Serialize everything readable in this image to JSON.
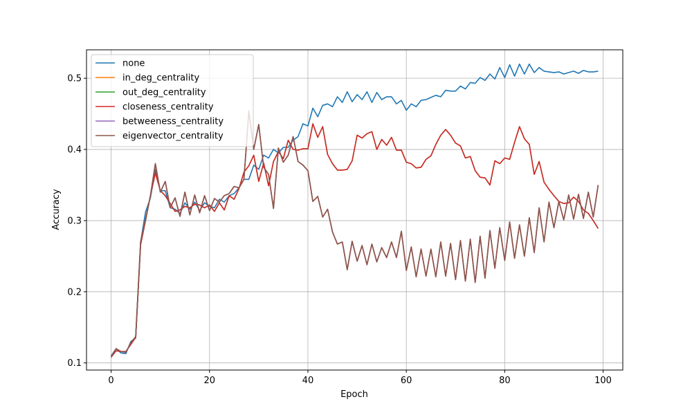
{
  "chart_data": {
    "type": "line",
    "xlabel": "Epoch",
    "ylabel": "Accuracy",
    "xlim": [
      -5,
      104
    ],
    "ylim": [
      0.09,
      0.54
    ],
    "xticks": [
      0,
      20,
      40,
      60,
      80,
      100
    ],
    "yticks": [
      0.1,
      0.2,
      0.3,
      0.4,
      0.5
    ],
    "grid": true,
    "legend_position": "top-left",
    "series": [
      {
        "name": "none",
        "color": "#1f77b4",
        "values": [
          0.11,
          0.12,
          0.114,
          0.113,
          0.13,
          0.135,
          0.27,
          0.312,
          0.332,
          0.372,
          0.342,
          0.342,
          0.318,
          0.316,
          0.31,
          0.325,
          0.316,
          0.326,
          0.314,
          0.325,
          0.32,
          0.318,
          0.33,
          0.326,
          0.335,
          0.338,
          0.346,
          0.358,
          0.358,
          0.378,
          0.372,
          0.392,
          0.388,
          0.4,
          0.395,
          0.403,
          0.403,
          0.413,
          0.418,
          0.436,
          0.433,
          0.458,
          0.446,
          0.462,
          0.464,
          0.46,
          0.474,
          0.466,
          0.481,
          0.467,
          0.477,
          0.47,
          0.481,
          0.466,
          0.48,
          0.47,
          0.474,
          0.474,
          0.464,
          0.469,
          0.455,
          0.464,
          0.46,
          0.469,
          0.47,
          0.473,
          0.476,
          0.474,
          0.483,
          0.482,
          0.482,
          0.489,
          0.485,
          0.494,
          0.493,
          0.501,
          0.497,
          0.506,
          0.499,
          0.515,
          0.501,
          0.519,
          0.503,
          0.52,
          0.506,
          0.52,
          0.508,
          0.515,
          0.51,
          0.509,
          0.508,
          0.509,
          0.506,
          0.508,
          0.51,
          0.507,
          0.511,
          0.509,
          0.509,
          0.51
        ]
      },
      {
        "name": "in_deg_centrality",
        "color": "#ff7f0e",
        "values": [
          0.108,
          0.12,
          0.116,
          0.115,
          0.128,
          0.137,
          0.27,
          0.302,
          0.335,
          0.38,
          0.34,
          0.355,
          0.318,
          0.332,
          0.306,
          0.34,
          0.308,
          0.336,
          0.311,
          0.335,
          0.314,
          0.331,
          0.326,
          0.335,
          0.338,
          0.348,
          0.346,
          0.358,
          0.454,
          0.4,
          0.435,
          0.375,
          0.365,
          0.317,
          0.402,
          0.382,
          0.392,
          0.418,
          0.383,
          0.378,
          0.37,
          0.327,
          0.334,
          0.305,
          0.316,
          0.284,
          0.267,
          0.27,
          0.231,
          0.271,
          0.243,
          0.265,
          0.238,
          0.267,
          0.242,
          0.262,
          0.248,
          0.27,
          0.248,
          0.285,
          0.23,
          0.263,
          0.221,
          0.26,
          0.222,
          0.26,
          0.221,
          0.27,
          0.222,
          0.268,
          0.217,
          0.272,
          0.215,
          0.274,
          0.213,
          0.278,
          0.219,
          0.286,
          0.233,
          0.29,
          0.244,
          0.298,
          0.247,
          0.294,
          0.25,
          0.304,
          0.255,
          0.318,
          0.27,
          0.326,
          0.29,
          0.327,
          0.301,
          0.336,
          0.302,
          0.337,
          0.303,
          0.34,
          0.305,
          0.35
        ]
      },
      {
        "name": "out_deg_centrality",
        "color": "#2ca02c",
        "values": [
          0.108,
          0.117,
          0.116,
          0.116,
          0.126,
          0.136,
          0.266,
          0.3,
          0.335,
          0.367,
          0.342,
          0.335,
          0.324,
          0.313,
          0.315,
          0.32,
          0.318,
          0.323,
          0.322,
          0.318,
          0.322,
          0.313,
          0.325,
          0.315,
          0.335,
          0.33,
          0.345,
          0.368,
          0.377,
          0.392,
          0.355,
          0.381,
          0.349,
          0.383,
          0.397,
          0.387,
          0.413,
          0.4,
          0.399,
          0.401,
          0.401,
          0.436,
          0.417,
          0.432,
          0.393,
          0.38,
          0.371,
          0.371,
          0.372,
          0.384,
          0.42,
          0.416,
          0.422,
          0.425,
          0.4,
          0.414,
          0.406,
          0.417,
          0.399,
          0.399,
          0.382,
          0.38,
          0.374,
          0.375,
          0.386,
          0.391,
          0.407,
          0.42,
          0.428,
          0.42,
          0.409,
          0.405,
          0.388,
          0.39,
          0.37,
          0.361,
          0.36,
          0.35,
          0.384,
          0.38,
          0.388,
          0.386,
          0.41,
          0.432,
          0.415,
          0.407,
          0.365,
          0.383,
          0.354,
          0.344,
          0.335,
          0.327,
          0.324,
          0.325,
          0.333,
          0.327,
          0.315,
          0.31,
          0.3,
          0.289
        ]
      },
      {
        "name": "closeness_centrality",
        "color": "#d62728",
        "values": [
          0.108,
          0.117,
          0.116,
          0.116,
          0.126,
          0.136,
          0.266,
          0.3,
          0.335,
          0.367,
          0.342,
          0.335,
          0.324,
          0.313,
          0.315,
          0.32,
          0.318,
          0.323,
          0.322,
          0.318,
          0.322,
          0.313,
          0.325,
          0.315,
          0.335,
          0.33,
          0.345,
          0.368,
          0.377,
          0.392,
          0.355,
          0.381,
          0.349,
          0.383,
          0.397,
          0.387,
          0.413,
          0.4,
          0.399,
          0.401,
          0.401,
          0.436,
          0.417,
          0.432,
          0.393,
          0.38,
          0.371,
          0.371,
          0.372,
          0.384,
          0.42,
          0.416,
          0.422,
          0.425,
          0.4,
          0.414,
          0.406,
          0.417,
          0.399,
          0.399,
          0.382,
          0.38,
          0.374,
          0.375,
          0.386,
          0.391,
          0.407,
          0.42,
          0.428,
          0.42,
          0.409,
          0.405,
          0.388,
          0.39,
          0.37,
          0.361,
          0.36,
          0.35,
          0.384,
          0.38,
          0.388,
          0.386,
          0.41,
          0.432,
          0.415,
          0.407,
          0.365,
          0.383,
          0.354,
          0.344,
          0.335,
          0.327,
          0.324,
          0.325,
          0.333,
          0.327,
          0.315,
          0.31,
          0.3,
          0.289
        ]
      },
      {
        "name": "betweeness_centrality",
        "color": "#9467bd",
        "values": [
          0.108,
          0.12,
          0.116,
          0.115,
          0.128,
          0.137,
          0.27,
          0.302,
          0.335,
          0.38,
          0.34,
          0.355,
          0.318,
          0.332,
          0.306,
          0.34,
          0.308,
          0.336,
          0.311,
          0.335,
          0.314,
          0.331,
          0.326,
          0.335,
          0.338,
          0.348,
          0.346,
          0.358,
          0.454,
          0.4,
          0.435,
          0.375,
          0.365,
          0.317,
          0.402,
          0.382,
          0.392,
          0.418,
          0.383,
          0.378,
          0.37,
          0.327,
          0.334,
          0.305,
          0.316,
          0.284,
          0.267,
          0.27,
          0.231,
          0.271,
          0.243,
          0.265,
          0.238,
          0.267,
          0.242,
          0.262,
          0.248,
          0.27,
          0.248,
          0.285,
          0.23,
          0.263,
          0.221,
          0.26,
          0.222,
          0.26,
          0.221,
          0.27,
          0.222,
          0.268,
          0.217,
          0.272,
          0.215,
          0.274,
          0.213,
          0.278,
          0.219,
          0.286,
          0.233,
          0.29,
          0.244,
          0.298,
          0.247,
          0.294,
          0.25,
          0.304,
          0.255,
          0.318,
          0.27,
          0.326,
          0.29,
          0.327,
          0.301,
          0.336,
          0.302,
          0.337,
          0.303,
          0.34,
          0.305,
          0.35
        ]
      },
      {
        "name": "eigenvector_centrality",
        "color": "#8c564b",
        "values": [
          0.108,
          0.12,
          0.116,
          0.115,
          0.128,
          0.137,
          0.27,
          0.302,
          0.335,
          0.38,
          0.34,
          0.355,
          0.318,
          0.332,
          0.306,
          0.34,
          0.308,
          0.336,
          0.311,
          0.335,
          0.314,
          0.331,
          0.326,
          0.335,
          0.338,
          0.348,
          0.346,
          0.358,
          0.454,
          0.4,
          0.435,
          0.375,
          0.365,
          0.317,
          0.402,
          0.382,
          0.392,
          0.418,
          0.383,
          0.378,
          0.37,
          0.327,
          0.334,
          0.305,
          0.316,
          0.284,
          0.267,
          0.27,
          0.231,
          0.271,
          0.243,
          0.265,
          0.238,
          0.267,
          0.242,
          0.262,
          0.248,
          0.27,
          0.248,
          0.285,
          0.23,
          0.263,
          0.221,
          0.26,
          0.222,
          0.26,
          0.221,
          0.27,
          0.222,
          0.268,
          0.217,
          0.272,
          0.215,
          0.274,
          0.213,
          0.278,
          0.219,
          0.286,
          0.233,
          0.29,
          0.244,
          0.298,
          0.247,
          0.294,
          0.25,
          0.304,
          0.255,
          0.318,
          0.27,
          0.326,
          0.29,
          0.327,
          0.301,
          0.336,
          0.302,
          0.337,
          0.303,
          0.34,
          0.305,
          0.35
        ]
      }
    ]
  }
}
